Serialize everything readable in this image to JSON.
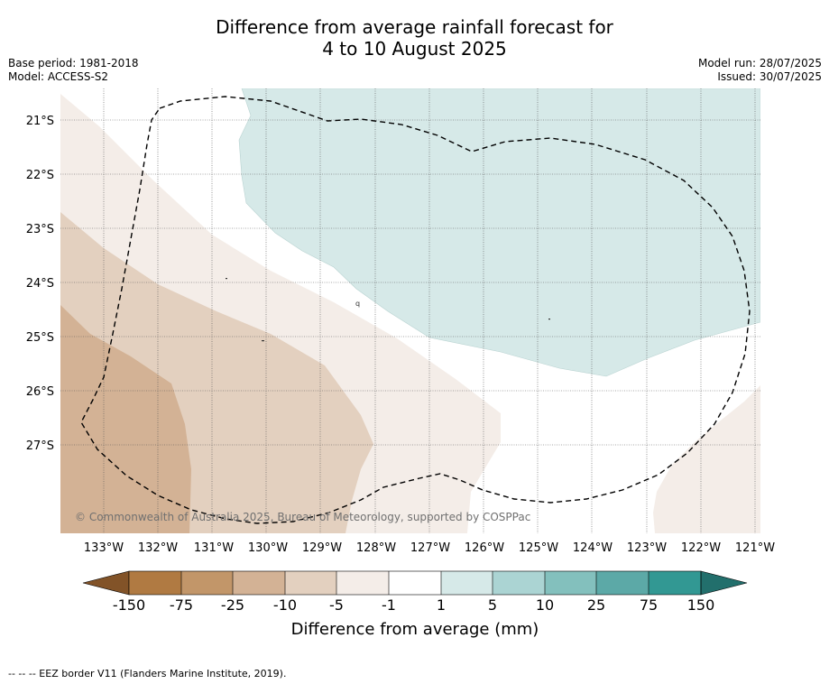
{
  "title": {
    "line1": "Difference from average rainfall forecast for",
    "line2": "4 to 10 August 2025"
  },
  "meta_left": {
    "base_period": "Base period: 1981-2018",
    "model": "Model: ACCESS-S2"
  },
  "meta_right": {
    "model_run": "Model run: 28/07/2025",
    "issued": "Issued: 30/07/2025"
  },
  "map": {
    "latitude_labels": [
      "21°S",
      "22°S",
      "23°S",
      "24°S",
      "25°S",
      "26°S",
      "27°S"
    ],
    "longitude_labels": [
      "133°W",
      "132°W",
      "131°W",
      "130°W",
      "129°W",
      "128°W",
      "127°W",
      "126°W",
      "125°W",
      "124°W",
      "123°W",
      "122°W",
      "121°W"
    ],
    "copyright": "© Commonwealth of Australia 2025, Bureau of Meteorology, supported by COSPPac",
    "colors": {
      "minus_1_to_minus_5": "#f4ede8",
      "minus_5_to_minus_10": "#e3d0bf",
      "minus_10_to_minus_25": "#d3b295",
      "plus_1_to_plus_5": "#d6e9e8",
      "eez_border": "#000000"
    }
  },
  "colorbar": {
    "ticks": [
      "-150",
      "-75",
      "-25",
      "-10",
      "-5",
      "-1",
      "1",
      "5",
      "10",
      "25",
      "75",
      "150"
    ],
    "colors": [
      "#825328",
      "#b07a42",
      "#c29669",
      "#d3b295",
      "#e3d0bf",
      "#f4ede8",
      "#ffffff",
      "#d6e9e8",
      "#abd4d3",
      "#83c0bd",
      "#5ca9a7",
      "#329893",
      "#226f6c"
    ],
    "label": "Difference from average (mm)"
  },
  "footer": {
    "legend_text": "--  --  -- EEZ border V11 (Flanders Marine Institute, 2019)."
  }
}
